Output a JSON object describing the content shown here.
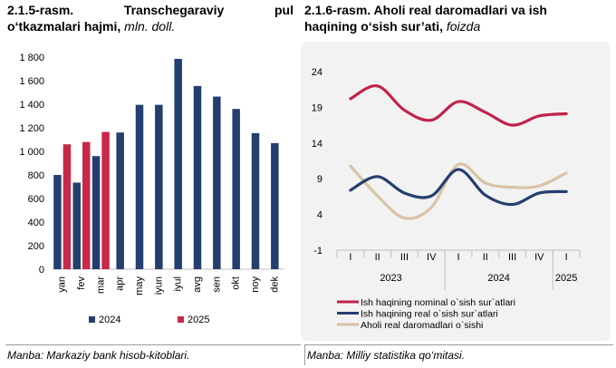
{
  "left": {
    "title_num": "2.1.5-rasm.",
    "title_main": "Transchegaraviy",
    "title_main2": "pul",
    "title_line2": "o‘tkazmalari hajmi,",
    "title_unit": "mln. doll.",
    "source": "Manba: Markaziy bank hisob-kitoblari."
  },
  "right": {
    "title_line1": "2.1.6-rasm. Aholi real daromadlari va ish",
    "title_line2": "haqining o‘sish sur’ati,",
    "title_unit": "foizda",
    "source": "Manba: Milliy statistika qo‘mitasi."
  },
  "chart_data": [
    {
      "type": "bar",
      "title": "Transchegaraviy pul o‘tkazmalari hajmi, mln. doll.",
      "categories": [
        "yan",
        "fev",
        "mar",
        "apr",
        "may",
        "iyun",
        "iyul",
        "avg",
        "sen",
        "okt",
        "noy",
        "dek"
      ],
      "series": [
        {
          "name": "2024",
          "color": "#243f6e",
          "values": [
            800,
            735,
            960,
            1160,
            1395,
            1395,
            1785,
            1555,
            1465,
            1360,
            1155,
            1070
          ]
        },
        {
          "name": "2025",
          "color": "#c8284a",
          "values": [
            1060,
            1080,
            1165,
            null,
            null,
            null,
            null,
            null,
            null,
            null,
            null,
            null
          ]
        }
      ],
      "ylim": [
        0,
        1800
      ],
      "yticks": [
        0,
        200,
        400,
        600,
        800,
        1000,
        1200,
        1400,
        1600,
        1800
      ],
      "ytick_labels": [
        "0",
        "200",
        "400",
        "600",
        "800",
        "1 000",
        "1 200",
        "1 400",
        "1 600",
        "1 800"
      ],
      "legend": "bottom"
    },
    {
      "type": "line",
      "title": "Aholi real daromadlari va ish haqining o‘sish sur’ati, foizda",
      "x": [
        "I",
        "II",
        "III",
        "IV",
        "I",
        "II",
        "III",
        "IV",
        "I"
      ],
      "year_groups": [
        {
          "label": "2023",
          "span": 4
        },
        {
          "label": "2024",
          "span": 4
        },
        {
          "label": "2025",
          "span": 1
        }
      ],
      "series": [
        {
          "name": "Ish haqining nominal o`sish sur`atlari",
          "color": "#c0234a",
          "values": [
            20.2,
            22.0,
            18.6,
            17.2,
            19.8,
            18.3,
            16.5,
            17.8,
            18.1
          ]
        },
        {
          "name": "Ish haqining real o`sish sur`atlari",
          "color": "#243f6e",
          "values": [
            7.4,
            9.3,
            7.0,
            6.6,
            10.3,
            6.7,
            5.4,
            7.0,
            7.2
          ]
        },
        {
          "name": "Aholi real daromadlari o`sishi",
          "color": "#d8c3a5",
          "values": [
            10.8,
            6.6,
            3.5,
            5.0,
            11.0,
            8.4,
            7.8,
            8.0,
            9.8
          ]
        }
      ],
      "ylim": [
        -1,
        24
      ],
      "yticks": [
        -1,
        4,
        9,
        14,
        19,
        24
      ],
      "ytick_labels": [
        "-1",
        "4",
        "9",
        "14",
        "19",
        "24"
      ],
      "legend": "bottom"
    }
  ]
}
